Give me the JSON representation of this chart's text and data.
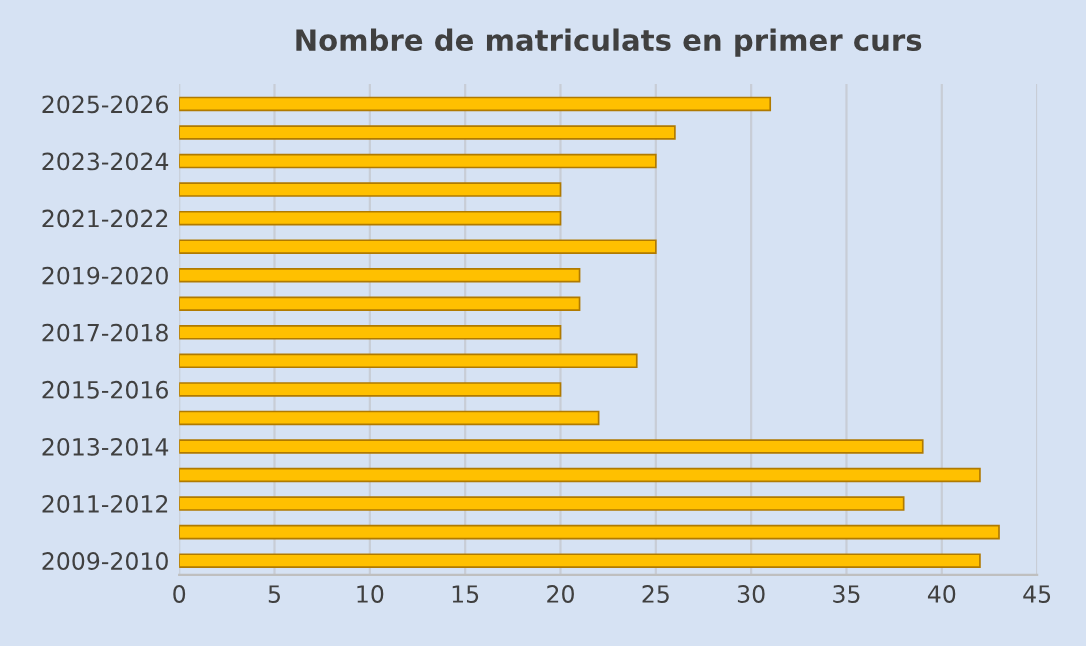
{
  "chart_data": {
    "type": "bar",
    "orientation": "horizontal",
    "title": "Nombre de matriculats en primer curs",
    "categories": [
      "2025-2026",
      null,
      "2023-2024",
      null,
      "2021-2022",
      null,
      "2019-2020",
      null,
      "2017-2018",
      null,
      "2015-2016",
      null,
      "2013-2014",
      null,
      "2011-2012",
      null,
      "2009-2010"
    ],
    "values": [
      31,
      26,
      25,
      20,
      20,
      25,
      21,
      21,
      20,
      24,
      20,
      22,
      39,
      42,
      38,
      43,
      42
    ],
    "color": "#ffc000",
    "xlim": [
      0,
      45
    ],
    "xticks": [
      0,
      5,
      10,
      15,
      20,
      25,
      30,
      35,
      40,
      45
    ],
    "grid": "x",
    "legend": false
  }
}
